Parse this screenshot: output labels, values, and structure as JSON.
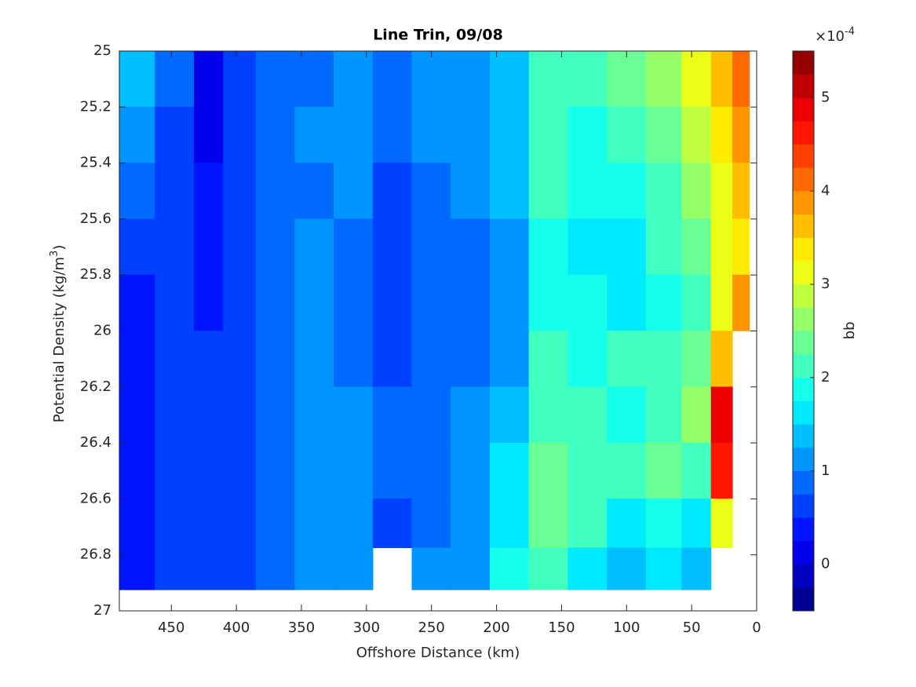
{
  "chart_data": {
    "type": "contourf",
    "title": "Line Trin, 09/08",
    "xlabel": "Offshore Distance (km)",
    "ylabel": "Potential Density (kg/m",
    "ylabel_sup": "3",
    "ylabel_end": ")",
    "colorbar_label": "bb",
    "colorbar_multiplier": "×10",
    "colorbar_exponent": "-4",
    "x": [
      480,
      445,
      420,
      400,
      370,
      340,
      310,
      280,
      250,
      220,
      190,
      160,
      130,
      100,
      70,
      45,
      25,
      12
    ],
    "y": [
      25.1,
      25.3,
      25.5,
      25.7,
      25.9,
      26.1,
      26.3,
      26.5,
      26.7,
      26.85
    ],
    "z": [
      [
        1.3,
        0.8,
        0.2,
        0.6,
        0.8,
        0.9,
        1.0,
        0.9,
        1.0,
        1.1,
        1.3,
        2.1,
        2.2,
        2.4,
        2.5,
        3.0,
        3.6,
        4.0
      ],
      [
        1.2,
        0.7,
        0.2,
        0.6,
        0.8,
        1.1,
        1.0,
        0.9,
        1.0,
        1.1,
        1.4,
        2.1,
        1.9,
        2.2,
        2.3,
        2.8,
        3.4,
        3.8
      ],
      [
        0.8,
        0.6,
        0.3,
        0.6,
        0.8,
        0.9,
        1.0,
        0.7,
        0.9,
        1.0,
        1.3,
        2.0,
        1.8,
        1.9,
        2.1,
        2.5,
        3.2,
        3.5
      ],
      [
        0.5,
        0.5,
        0.4,
        0.6,
        0.8,
        1.2,
        0.9,
        0.6,
        0.8,
        0.9,
        1.2,
        1.9,
        1.7,
        1.6,
        2.0,
        2.3,
        3.0,
        3.3
      ],
      [
        0.4,
        0.5,
        0.4,
        0.6,
        0.9,
        1.2,
        0.9,
        0.6,
        0.8,
        0.9,
        1.2,
        1.9,
        1.8,
        1.7,
        1.9,
        2.2,
        3.0,
        3.8
      ],
      [
        0.4,
        0.5,
        0.5,
        0.6,
        0.9,
        1.0,
        0.9,
        0.7,
        0.9,
        0.9,
        1.2,
        2.0,
        1.9,
        2.0,
        2.1,
        2.4,
        3.5,
        null
      ],
      [
        0.4,
        0.5,
        0.5,
        0.6,
        0.8,
        1.1,
        1.0,
        0.8,
        0.9,
        1.0,
        1.4,
        2.2,
        2.0,
        1.9,
        2.2,
        2.5,
        4.8,
        null
      ],
      [
        0.4,
        0.5,
        0.5,
        0.7,
        0.9,
        1.2,
        1.1,
        0.8,
        0.9,
        1.1,
        1.6,
        2.3,
        2.1,
        2.0,
        2.3,
        2.2,
        4.5,
        null
      ],
      [
        0.4,
        0.5,
        0.5,
        0.7,
        0.9,
        1.2,
        1.0,
        0.6,
        0.9,
        1.2,
        1.7,
        2.3,
        2.0,
        1.6,
        1.9,
        1.5,
        3.2,
        null
      ],
      [
        0.4,
        0.5,
        0.5,
        0.7,
        0.9,
        1.1,
        1.0,
        null,
        1.0,
        1.2,
        1.8,
        2.1,
        1.7,
        1.4,
        1.5,
        1.3,
        null,
        null
      ]
    ],
    "xlim": [
      490,
      0
    ],
    "xticks": [
      450,
      400,
      350,
      300,
      250,
      200,
      150,
      100,
      50,
      0
    ],
    "ylim": [
      25,
      27
    ],
    "yticks": [
      25,
      25.2,
      25.4,
      25.6,
      25.8,
      26,
      26.2,
      26.4,
      26.6,
      26.8,
      27
    ],
    "clim": [
      -0.5,
      5.5
    ],
    "cticks": [
      0,
      1,
      2,
      3,
      4,
      5
    ],
    "colors": [
      "#000095",
      "#0000bf",
      "#0000ea",
      "#0015ff",
      "#0040ff",
      "#006aff",
      "#0095ff",
      "#00bfff",
      "#00eaff",
      "#15ffea",
      "#40ffbf",
      "#6aff95",
      "#95ff6a",
      "#bfff40",
      "#eaff15",
      "#ffea00",
      "#ffbf00",
      "#ff9500",
      "#ff6a00",
      "#ff4000",
      "#ff1500",
      "#ea0000",
      "#bf0000",
      "#950000"
    ]
  }
}
